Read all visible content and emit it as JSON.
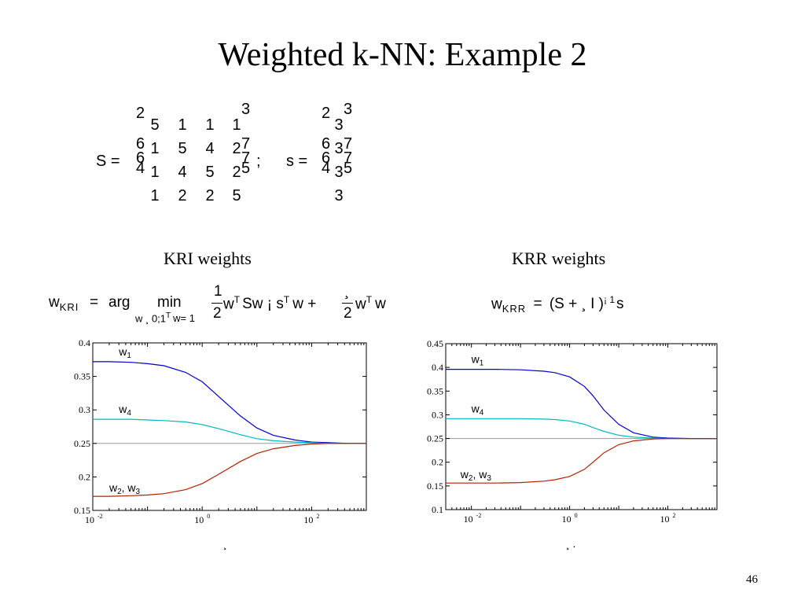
{
  "slide": {
    "title": "Weighted k-NN: Example 2",
    "page_number": "46"
  },
  "matrices": {
    "S_label": "S =",
    "S_rows": [
      [
        "5",
        "1",
        "1",
        "1"
      ],
      [
        "1",
        "5",
        "4",
        "2"
      ],
      [
        "1",
        "4",
        "5",
        "2"
      ],
      [
        "1",
        "2",
        "2",
        "5"
      ]
    ],
    "separator": ";",
    "s_label": "s =",
    "s_values": [
      "3",
      "3",
      "3",
      "3"
    ],
    "bracket_glyphs": {
      "top_left": "2",
      "mid_left": "6",
      "mid_left2": "4",
      "top_right": "3",
      "mid_right": "7",
      "mid_right2": "5"
    }
  },
  "left_panel": {
    "heading": "KRI weights",
    "equation": {
      "lhs": "w",
      "lhs_sub": "KRI",
      "eq": "=",
      "arg": "arg",
      "min": "min",
      "min_sub": "w ¸ 0;1",
      "min_sub_sup": "T",
      "min_sub_tail": "w= 1",
      "frac1_num": "1",
      "frac1_den": "2",
      "term1": "w",
      "term1_sup": "T",
      "term1_tail": "Sw ¡  s",
      "term2_sup": "T",
      "term2_tail": "w +",
      "frac2_num": "¸",
      "frac2_den": "2",
      "term3": "w",
      "term3_sup": "T",
      "term3_tail": "w"
    },
    "xlabel": "¸"
  },
  "right_panel": {
    "heading": "KRR weights",
    "equation": {
      "lhs": "w",
      "lhs_sub": "KRR",
      "eq": "=",
      "body": "(S + ¸ I )",
      "sup": "¡ 1",
      "tail": "s"
    },
    "xlabel": "¸ ."
  },
  "chart_data": [
    {
      "type": "line",
      "x_scale": "log",
      "xlim": [
        0.01,
        1000
      ],
      "ylim": [
        0.15,
        0.4
      ],
      "yticks": [
        "0.15",
        "0.2",
        "0.25",
        "0.3",
        "0.35",
        "0.4"
      ],
      "xticks": [
        {
          "base": "10",
          "exp": "-2"
        },
        {
          "base": "10",
          "exp": "0"
        },
        {
          "base": "10",
          "exp": "2"
        }
      ],
      "reference_line": 0.25,
      "grid": false,
      "x": [
        0.01,
        0.02,
        0.05,
        0.1,
        0.2,
        0.5,
        1,
        2,
        5,
        10,
        20,
        50,
        100,
        200,
        500,
        1000
      ],
      "series": [
        {
          "name": "w1",
          "label": "w",
          "label_sub": "1",
          "color": "#0000cc",
          "values": [
            0.372,
            0.372,
            0.371,
            0.369,
            0.366,
            0.356,
            0.342,
            0.32,
            0.291,
            0.273,
            0.262,
            0.255,
            0.252,
            0.251,
            0.25,
            0.25
          ]
        },
        {
          "name": "w4",
          "label": "w",
          "label_sub": "4",
          "color": "#00b8c0",
          "values": [
            0.286,
            0.286,
            0.286,
            0.285,
            0.284,
            0.282,
            0.278,
            0.272,
            0.263,
            0.257,
            0.254,
            0.252,
            0.251,
            0.25,
            0.25,
            0.25
          ]
        },
        {
          "name": "w2, w3",
          "label": "w",
          "label_sub": "2",
          "label_mid": ",  w",
          "label_sub2": "3",
          "color": "#b22000",
          "values": [
            0.171,
            0.171,
            0.172,
            0.173,
            0.175,
            0.181,
            0.19,
            0.204,
            0.223,
            0.235,
            0.242,
            0.247,
            0.249,
            0.25,
            0.25,
            0.25
          ]
        }
      ]
    },
    {
      "type": "line",
      "x_scale": "log",
      "xlim": [
        0.003,
        1000
      ],
      "ylim": [
        0.1,
        0.45
      ],
      "yticks": [
        "0.1",
        "0.15",
        "0.2",
        "0.25",
        "0.3",
        "0.35",
        "0.4",
        "0.45"
      ],
      "xticks": [
        {
          "base": "10",
          "exp": "-2"
        },
        {
          "base": "10",
          "exp": "0"
        },
        {
          "base": "10",
          "exp": "2"
        }
      ],
      "reference_line": 0.25,
      "grid": false,
      "x": [
        0.003,
        0.01,
        0.03,
        0.1,
        0.3,
        0.5,
        1,
        2,
        3,
        5,
        10,
        20,
        50,
        100,
        300,
        1000
      ],
      "series": [
        {
          "name": "w1",
          "label": "w",
          "label_sub": "1",
          "color": "#0000cc",
          "values": [
            0.396,
            0.396,
            0.396,
            0.395,
            0.392,
            0.389,
            0.38,
            0.36,
            0.34,
            0.31,
            0.28,
            0.262,
            0.253,
            0.251,
            0.25,
            0.25
          ]
        },
        {
          "name": "w4",
          "label": "w",
          "label_sub": "4",
          "color": "#00b8c0",
          "values": [
            0.292,
            0.292,
            0.292,
            0.292,
            0.291,
            0.29,
            0.287,
            0.28,
            0.273,
            0.265,
            0.257,
            0.253,
            0.251,
            0.25,
            0.25,
            0.25
          ]
        },
        {
          "name": "w2, w3",
          "label": "w",
          "label_sub": "2",
          "label_mid": ",  w",
          "label_sub2": "3",
          "color": "#b22000",
          "values": [
            0.156,
            0.156,
            0.156,
            0.157,
            0.16,
            0.163,
            0.17,
            0.185,
            0.2,
            0.22,
            0.237,
            0.245,
            0.249,
            0.25,
            0.25,
            0.25
          ]
        }
      ]
    }
  ]
}
